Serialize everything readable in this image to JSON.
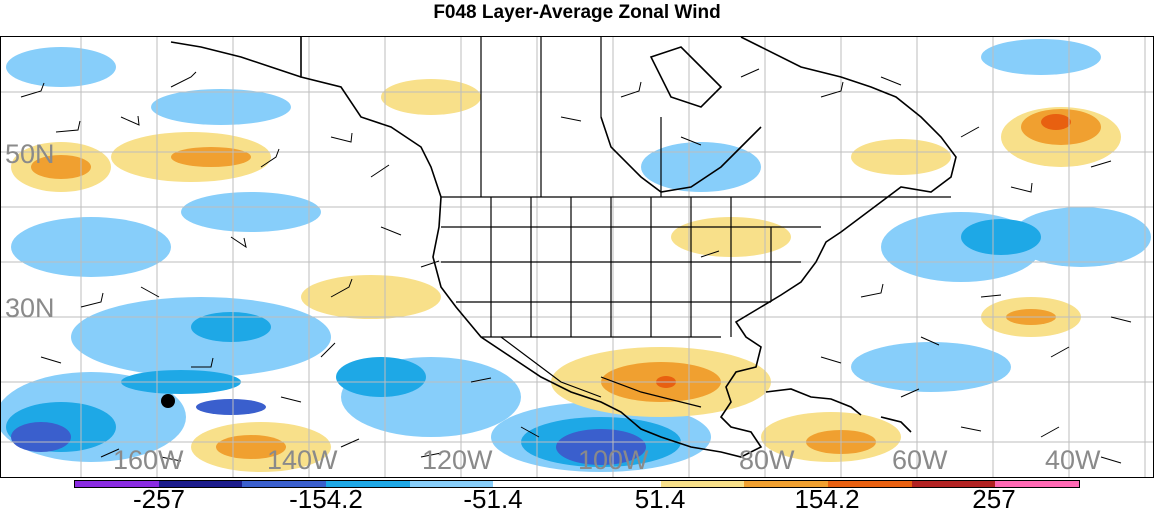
{
  "title": "F048 Layer-Average Zonal Wind",
  "map": {
    "lat_labels": [
      "50N",
      "30N"
    ],
    "lon_labels": [
      "160W",
      "140W",
      "120W",
      "100W",
      "80W",
      "60W",
      "40W"
    ],
    "label_color": "#8a8a8a",
    "grid_color": "#bdbdbd",
    "coastline_color": "#000000"
  },
  "colorbar": {
    "colors": [
      "#8a2be2",
      "#1c1c8c",
      "#3a5fcd",
      "#1ea8e6",
      "#87cefa",
      "#ffffff",
      "#ffffff",
      "#f8e08a",
      "#f0a030",
      "#e86010",
      "#b22222",
      "#ff69b4"
    ],
    "labels": [
      "-257",
      "-154.2",
      "-51.4",
      "51.4",
      "154.2",
      "257"
    ]
  }
}
